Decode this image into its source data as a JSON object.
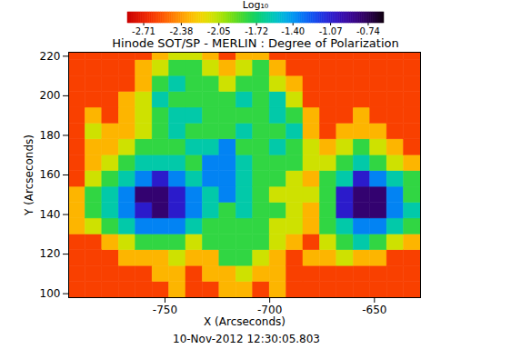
{
  "chart_data": {
    "type": "heatmap",
    "title": "Hinode SOT/SP - MERLIN : Degree of Polarization",
    "caption": "10-Nov-2012 12:30:05.803",
    "x_label": "X (Arcseconds)",
    "y_label": "Y (Arcseconds)",
    "xlim": [
      -796,
      -628
    ],
    "ylim": [
      98,
      222
    ],
    "xticks": [
      -750,
      -700,
      -650
    ],
    "yticks": [
      100,
      120,
      140,
      160,
      180,
      200,
      220
    ],
    "x_bins": [
      -796,
      -788,
      -780,
      -772,
      -764,
      -756,
      -748,
      -740,
      -732,
      -724,
      -716,
      -708,
      -700,
      -692,
      -684,
      -676,
      -668,
      -660,
      -652,
      -644,
      -636,
      -628
    ],
    "y_bins": [
      98,
      106,
      114,
      122,
      130,
      138,
      146,
      154,
      162,
      170,
      178,
      186,
      194,
      202,
      210,
      218,
      222
    ],
    "values": [
      [
        -2.6,
        -2.6,
        -2.6,
        -2.6,
        -2.6,
        -2.6,
        -2.3,
        -2.6,
        -2.6,
        -2.3,
        -2.3,
        -2.6,
        -2.3,
        -2.6,
        -2.6,
        -2.6,
        -2.6,
        -2.6,
        -2.6,
        -2.6,
        -2.6
      ],
      [
        -2.6,
        -2.6,
        -2.6,
        -2.6,
        -2.6,
        -2.3,
        -2.3,
        -2.6,
        -2.3,
        -2.3,
        -2.1,
        -2.3,
        -2.3,
        -2.6,
        -2.6,
        -2.6,
        -2.6,
        -2.6,
        -2.6,
        -2.6,
        -2.6
      ],
      [
        -2.6,
        -2.6,
        -2.6,
        -2.3,
        -2.3,
        -2.3,
        -2.1,
        -2.3,
        -2.3,
        -1.8,
        -1.8,
        -2.1,
        -2.3,
        -2.6,
        -2.3,
        -2.3,
        -2.1,
        -2.3,
        -2.3,
        -2.6,
        -2.6
      ],
      [
        -2.6,
        -2.6,
        -2.3,
        -2.1,
        -1.8,
        -1.8,
        -1.8,
        -2.1,
        -1.8,
        -1.8,
        -1.8,
        -1.8,
        -2.1,
        -2.3,
        -2.6,
        -2.1,
        -1.8,
        -1.6,
        -1.8,
        -2.1,
        -2.3
      ],
      [
        -2.3,
        -2.1,
        -1.8,
        -1.6,
        -1.35,
        -1.35,
        -1.35,
        -1.6,
        -1.8,
        -1.8,
        -1.8,
        -1.8,
        -2.1,
        -2.1,
        -2.3,
        -1.8,
        -1.6,
        -1.35,
        -1.35,
        -1.6,
        -1.8
      ],
      [
        -2.3,
        -1.8,
        -1.6,
        -1.35,
        -1.05,
        -0.8,
        -1.05,
        -1.35,
        -1.6,
        -1.8,
        -1.6,
        -1.8,
        -1.8,
        -2.1,
        -2.3,
        -1.8,
        -1.05,
        -0.8,
        -0.8,
        -1.35,
        -1.6
      ],
      [
        -2.3,
        -1.8,
        -1.6,
        -1.35,
        -0.8,
        -0.8,
        -1.05,
        -1.35,
        -1.6,
        -1.35,
        -1.6,
        -1.8,
        -2.1,
        -2.1,
        -2.1,
        -1.8,
        -1.05,
        -0.8,
        -0.8,
        -1.35,
        -1.8
      ],
      [
        -2.6,
        -2.1,
        -1.8,
        -1.6,
        -1.35,
        -1.05,
        -1.35,
        -1.6,
        -1.35,
        -1.35,
        -1.6,
        -1.8,
        -1.8,
        -2.1,
        -2.3,
        -1.8,
        -1.6,
        -1.05,
        -1.35,
        -1.6,
        -1.8
      ],
      [
        -2.6,
        -2.3,
        -2.1,
        -1.8,
        -1.6,
        -1.6,
        -1.6,
        -1.8,
        -1.35,
        -1.35,
        -1.6,
        -1.8,
        -1.8,
        -1.8,
        -2.1,
        -2.1,
        -1.8,
        -1.6,
        -1.8,
        -2.1,
        -2.3
      ],
      [
        -2.6,
        -2.3,
        -2.3,
        -2.1,
        -1.8,
        -1.8,
        -1.8,
        -1.6,
        -1.6,
        -1.35,
        -1.8,
        -1.8,
        -1.6,
        -1.8,
        -2.1,
        -2.3,
        -2.1,
        -1.8,
        -2.1,
        -2.3,
        -2.6
      ],
      [
        -2.6,
        -2.1,
        -2.3,
        -2.3,
        -2.1,
        -1.8,
        -1.6,
        -1.8,
        -1.8,
        -1.8,
        -1.6,
        -1.8,
        -1.8,
        -1.6,
        -2.3,
        -2.6,
        -2.3,
        -2.3,
        -2.3,
        -2.6,
        -2.6
      ],
      [
        -2.6,
        -2.3,
        -2.6,
        -2.3,
        -2.1,
        -1.8,
        -1.6,
        -1.6,
        -1.8,
        -1.8,
        -1.8,
        -1.8,
        -1.6,
        -1.8,
        -2.3,
        -2.6,
        -2.6,
        -2.3,
        -2.6,
        -2.6,
        -2.6
      ],
      [
        -2.6,
        -2.6,
        -2.6,
        -2.3,
        -2.1,
        -1.6,
        -1.8,
        -1.8,
        -1.8,
        -1.8,
        -1.6,
        -1.8,
        -1.6,
        -2.1,
        -2.6,
        -2.6,
        -2.6,
        -2.6,
        -2.6,
        -2.6,
        -2.6
      ],
      [
        -2.6,
        -2.6,
        -2.6,
        -2.6,
        -2.3,
        -1.8,
        -1.6,
        -1.8,
        -1.8,
        -2.1,
        -1.8,
        -1.8,
        -2.1,
        -2.3,
        -2.6,
        -2.6,
        -2.6,
        -2.6,
        -2.6,
        -2.6,
        -2.6
      ],
      [
        -2.6,
        -2.6,
        -2.6,
        -2.6,
        -2.3,
        -2.1,
        -1.8,
        -1.8,
        -2.1,
        -2.3,
        -2.1,
        -1.8,
        -2.3,
        -2.6,
        -2.6,
        -2.6,
        -2.6,
        -2.6,
        -2.6,
        -2.6,
        -2.6
      ],
      [
        -2.6,
        -2.6,
        -2.6,
        -2.6,
        -2.6,
        -2.3,
        -2.1,
        -2.1,
        -2.3,
        -2.6,
        -2.3,
        -2.3,
        -2.6,
        -2.6,
        -2.6,
        -2.6,
        -2.6,
        -2.6,
        -2.6,
        -2.6,
        -2.6
      ]
    ],
    "colorbar": {
      "label": "Log₁₀",
      "range": [
        -2.85,
        -0.6
      ],
      "ticks": [
        -2.71,
        -2.38,
        -2.05,
        -1.72,
        {
          "value": -1.4,
          "label": "-1.40"
        },
        -1.07,
        -0.74
      ]
    }
  }
}
